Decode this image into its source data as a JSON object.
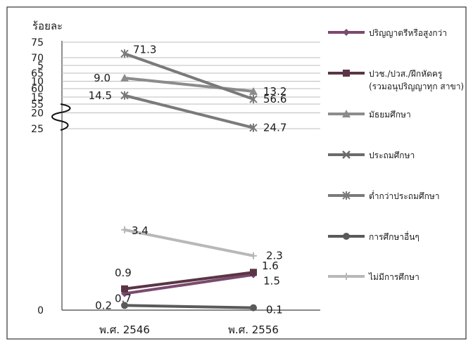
{
  "chart_data": {
    "type": "line",
    "ylabel": "ร้อยละ",
    "categories": [
      "พ.ศ. 2546",
      "พ.ศ. 2556"
    ],
    "y_axis_break": [
      30,
      52
    ],
    "yticks": [
      0,
      5,
      10,
      15,
      20,
      25,
      55,
      60,
      65,
      70,
      75
    ],
    "grid": "horizontal",
    "legend_position": "right",
    "series": [
      {
        "name": "ปริญญาตรีหรือสูงกว่า",
        "values": [
          0.7,
          1.5
        ],
        "labels": [
          "0.7",
          "1.5"
        ],
        "color": "#7b4a6e",
        "marker": "diamond"
      },
      {
        "name": "ปวช./ปวส./ฝึกหัดครู (รวมอนุปริญญาทุกสาขา)",
        "values": [
          0.9,
          1.6
        ],
        "labels": [
          "0.9",
          "1.6"
        ],
        "color": "#5a3545",
        "marker": "square"
      },
      {
        "name": "มัธยมศึกษา",
        "values": [
          9.0,
          13.2
        ],
        "labels": [
          "9.0",
          "13.2"
        ],
        "color": "#8c8c8c",
        "marker": "triangle"
      },
      {
        "name": "ประถมศึกษา",
        "values": [
          null,
          null
        ],
        "labels": [
          "",
          ""
        ],
        "color": "#6b6b6b",
        "marker": "x"
      },
      {
        "name": "ต่ำกว่าประถมศึกษา",
        "values": [
          71.3,
          56.6
        ],
        "labels": [
          "71.3",
          "56.6"
        ],
        "color": "#7a7a7a",
        "marker": "star"
      },
      {
        "name": "",
        "values": [
          14.5,
          24.7
        ],
        "labels": [
          "14.5",
          "24.7"
        ],
        "color": "#7a7a7a",
        "marker": "star"
      },
      {
        "name": "การศึกษาอื่นๆ",
        "values": [
          0.2,
          0.1
        ],
        "labels": [
          "0.2",
          "0.1"
        ],
        "color": "#5a5a5a",
        "marker": "circle"
      },
      {
        "name": "ไม่มีการศึกษา",
        "values": [
          3.4,
          2.3
        ],
        "labels": [
          "3.4",
          "2.3"
        ],
        "color": "#b8b8b8",
        "marker": "plus"
      }
    ]
  }
}
